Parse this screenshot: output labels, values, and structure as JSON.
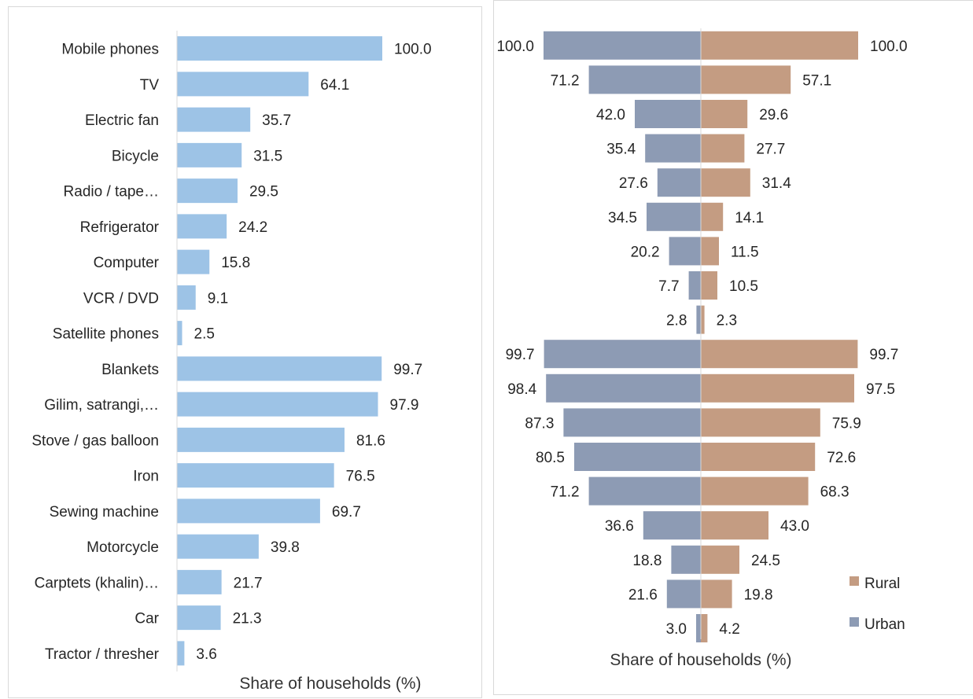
{
  "chart_data": [
    {
      "type": "bar",
      "orientation": "horizontal",
      "categories": [
        "Mobile phones",
        "TV",
        "Electric fan",
        "Bicycle",
        "Radio / tape…",
        "Refrigerator",
        "Computer",
        "VCR / DVD",
        "Satellite phones",
        "Blankets",
        "Gilim, satrangi,…",
        "Stove / gas balloon",
        "Iron",
        "Sewing machine",
        "Motorcycle",
        "Carptets (khalin)…",
        "Car",
        "Tractor / thresher"
      ],
      "values": [
        100.0,
        64.1,
        35.7,
        31.5,
        29.5,
        24.2,
        15.8,
        9.1,
        2.5,
        99.7,
        97.9,
        81.6,
        76.5,
        69.7,
        39.8,
        21.7,
        21.3,
        3.6
      ],
      "value_labels": [
        "100.0",
        "64.1",
        "35.7",
        "31.5",
        "29.5",
        "24.2",
        "15.8",
        "9.1",
        "2.5",
        "99.7",
        "97.9",
        "81.6",
        "76.5",
        "69.7",
        "39.8",
        "21.7",
        "21.3",
        "3.6"
      ],
      "xlabel": "Share of households (%)",
      "xlim": [
        0,
        100
      ],
      "grid": false,
      "color": "#9DC3E6"
    },
    {
      "type": "bar",
      "orientation": "horizontal-diverging",
      "series": [
        {
          "name": "Urban",
          "color": "#8D9BB4",
          "values": [
            100.0,
            71.2,
            42.0,
            35.4,
            27.6,
            34.5,
            20.2,
            7.7,
            2.8,
            99.7,
            98.4,
            87.3,
            80.5,
            71.2,
            36.6,
            18.8,
            21.6,
            3.0
          ],
          "value_labels": [
            "100.0",
            "71.2",
            "42.0",
            "35.4",
            "27.6",
            "34.5",
            "20.2",
            "7.7",
            "2.8",
            "99.7",
            "98.4",
            "87.3",
            "80.5",
            "71.2",
            "36.6",
            "18.8",
            "21.6",
            "3.0"
          ]
        },
        {
          "name": "Rural",
          "color": "#C49C82",
          "values": [
            100.0,
            57.1,
            29.6,
            27.7,
            31.4,
            14.1,
            11.5,
            10.5,
            2.3,
            99.7,
            97.5,
            75.9,
            72.6,
            68.3,
            43.0,
            24.5,
            19.8,
            4.2
          ],
          "value_labels": [
            "100.0",
            "57.1",
            "29.6",
            "27.7",
            "31.4",
            "14.1",
            "11.5",
            "10.5",
            "2.3",
            "99.7",
            "97.5",
            "75.9",
            "72.6",
            "68.3",
            "43.0",
            "24.5",
            "19.8",
            "4.2"
          ]
        }
      ],
      "xlabel": "Share of households (%)",
      "xlim": [
        -100,
        100
      ],
      "grid": false,
      "legend": {
        "placement": "bottom-right",
        "entries": [
          "Rural",
          "Urban"
        ]
      }
    }
  ]
}
